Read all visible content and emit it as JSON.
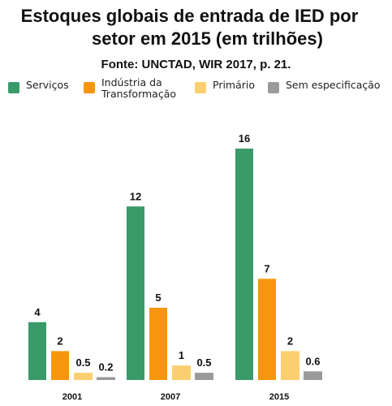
{
  "header": {
    "title_line1": "Estoques globais de entrada de IED por",
    "title_line2": "setor em 2015 (em trilhões)",
    "source": "Fonte: UNCTAD, WIR 2017, p. 21."
  },
  "chart_data": {
    "type": "bar",
    "categories": [
      "2001",
      "2007",
      "2015"
    ],
    "series": [
      {
        "name": "Serviços",
        "color": "#3a9a6a",
        "values": [
          4,
          12,
          16
        ]
      },
      {
        "name": "Indústria da\nTransformação",
        "color": "#f7960e",
        "values": [
          2,
          5,
          7
        ]
      },
      {
        "name": "Primário",
        "color": "#fbcf70",
        "values": [
          0.5,
          1,
          2
        ]
      },
      {
        "name": "Sem especificação",
        "color": "#9a9a9a",
        "values": [
          0.2,
          0.5,
          0.6
        ]
      }
    ],
    "value_labels": [
      [
        "4",
        "12",
        "16"
      ],
      [
        "2",
        "5",
        "7"
      ],
      [
        "0.5",
        "1",
        "2"
      ],
      [
        "0.2",
        "0.5",
        "0.6"
      ]
    ],
    "ylim": [
      0,
      16
    ],
    "grid": false,
    "legend_position": "top"
  }
}
